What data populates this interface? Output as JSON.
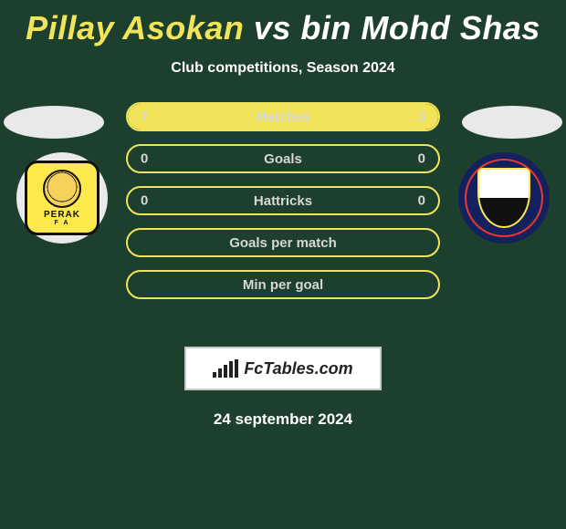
{
  "title": {
    "player1": "Pillay Asokan",
    "vs": "vs",
    "player2": "bin Mohd Shas"
  },
  "subtitle": "Club competitions, Season 2024",
  "badges": {
    "left": {
      "name": "perak-badge",
      "text": "PERAK",
      "sub": "F A"
    },
    "right": {
      "name": "pahang-badge"
    }
  },
  "rows": [
    {
      "label": "Matches",
      "left": "7",
      "right": "3",
      "left_pct": 70,
      "right_pct": 30,
      "show_vals": true
    },
    {
      "label": "Goals",
      "left": "0",
      "right": "0",
      "left_pct": 0,
      "right_pct": 0,
      "show_vals": true
    },
    {
      "label": "Hattricks",
      "left": "0",
      "right": "0",
      "left_pct": 0,
      "right_pct": 0,
      "show_vals": true
    },
    {
      "label": "Goals per match",
      "left": "",
      "right": "",
      "left_pct": 0,
      "right_pct": 0,
      "show_vals": false
    },
    {
      "label": "Min per goal",
      "left": "",
      "right": "",
      "left_pct": 0,
      "right_pct": 0,
      "show_vals": false
    }
  ],
  "brand": "FcTables.com",
  "date": "24 september 2024",
  "colors": {
    "bg": "#1c3f2e",
    "accent": "#f2e45a",
    "text": "#d7d7d7"
  }
}
